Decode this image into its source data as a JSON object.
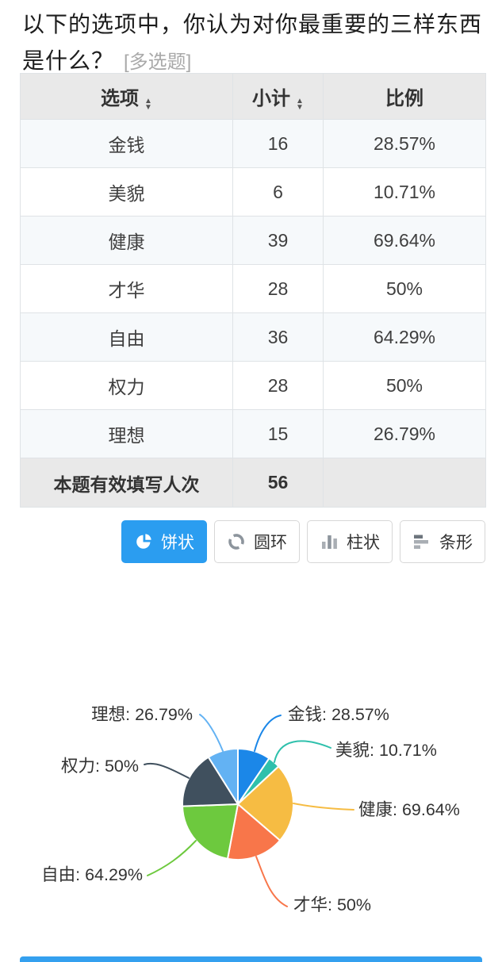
{
  "question": {
    "title": "以下的选项中，你认为对你最重要的三样东西是什么？",
    "tag": "[多选题]"
  },
  "icons": {
    "sort_up": "▲",
    "sort_down": "▼"
  },
  "table": {
    "headers": [
      {
        "label": "选项",
        "sortable": true
      },
      {
        "label": "小计",
        "sortable": true
      },
      {
        "label": "比例",
        "sortable": false
      }
    ],
    "rows": [
      {
        "option": "金钱",
        "count": "16",
        "percent": "28.57%"
      },
      {
        "option": "美貌",
        "count": "6",
        "percent": "10.71%"
      },
      {
        "option": "健康",
        "count": "39",
        "percent": "69.64%"
      },
      {
        "option": "才华",
        "count": "28",
        "percent": "50%"
      },
      {
        "option": "自由",
        "count": "36",
        "percent": "64.29%"
      },
      {
        "option": "权力",
        "count": "28",
        "percent": "50%"
      },
      {
        "option": "理想",
        "count": "15",
        "percent": "26.79%"
      }
    ],
    "footer": {
      "label": "本题有效填写人次",
      "count": "56",
      "percent": ""
    }
  },
  "chart_buttons": [
    {
      "label": "饼状",
      "icon": "pie-icon",
      "active": true
    },
    {
      "label": "圆环",
      "icon": "donut-icon",
      "active": false
    },
    {
      "label": "柱状",
      "icon": "column-icon",
      "active": false
    },
    {
      "label": "条形",
      "icon": "bar-icon",
      "active": false
    }
  ],
  "colors": {
    "accent_blue": "#2b9df0",
    "table_header_bg": "#e9e9e9",
    "row_alt_bg": "#f6f9fb",
    "table_border": "#dfe3e6"
  },
  "chart_data": {
    "type": "pie",
    "title": "",
    "legend_position": "none",
    "start_angle": "top-clockwise",
    "valid_responses": 56,
    "label_format": "{name}: {percent}",
    "items": [
      {
        "label": "金钱",
        "value": 16,
        "percent": "28.57%",
        "color": "#1b87e8"
      },
      {
        "label": "美貌",
        "value": 6,
        "percent": "10.71%",
        "color": "#2fc0ac"
      },
      {
        "label": "健康",
        "value": 39,
        "percent": "69.64%",
        "color": "#f6bc43"
      },
      {
        "label": "才华",
        "value": 28,
        "percent": "50%",
        "color": "#f8764a"
      },
      {
        "label": "自由",
        "value": 36,
        "percent": "64.29%",
        "color": "#6dc93e"
      },
      {
        "label": "权力",
        "value": 28,
        "percent": "50%",
        "color": "#40505e"
      },
      {
        "label": "理想",
        "value": 15,
        "percent": "26.79%",
        "color": "#63b2f3"
      }
    ]
  }
}
